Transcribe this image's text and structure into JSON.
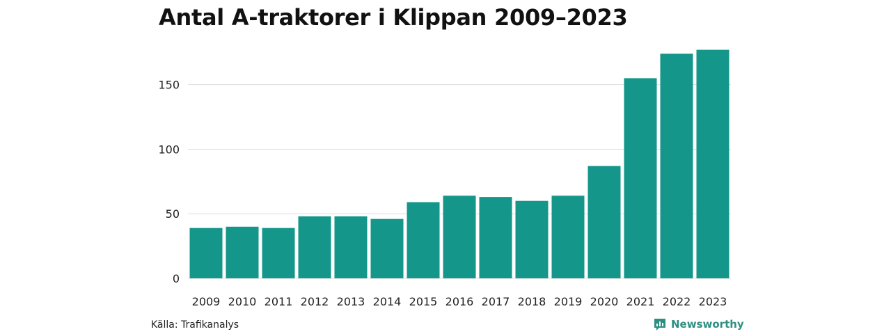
{
  "title": "Antal A-traktorer i Klippan 2009–2023",
  "source": "Källa: Trafikanalys",
  "brand": {
    "name": "Newsworthy",
    "icon": "newsworthy-logo-icon",
    "color": "#2e8f80"
  },
  "chart_data": {
    "type": "bar",
    "title": "Antal A-traktorer i Klippan 2009–2023",
    "xlabel": "",
    "ylabel": "",
    "categories": [
      "2009",
      "2010",
      "2011",
      "2012",
      "2013",
      "2014",
      "2015",
      "2016",
      "2017",
      "2018",
      "2019",
      "2020",
      "2021",
      "2022",
      "2023"
    ],
    "values": [
      39,
      40,
      39,
      48,
      48,
      46,
      59,
      64,
      63,
      60,
      64,
      87,
      155,
      174,
      177
    ],
    "ylim": [
      0,
      180
    ],
    "yticks": [
      0,
      50,
      100,
      150
    ],
    "grid": true,
    "legend": "none",
    "bar_color": "#15968a",
    "grid_color": "#dddddd"
  }
}
